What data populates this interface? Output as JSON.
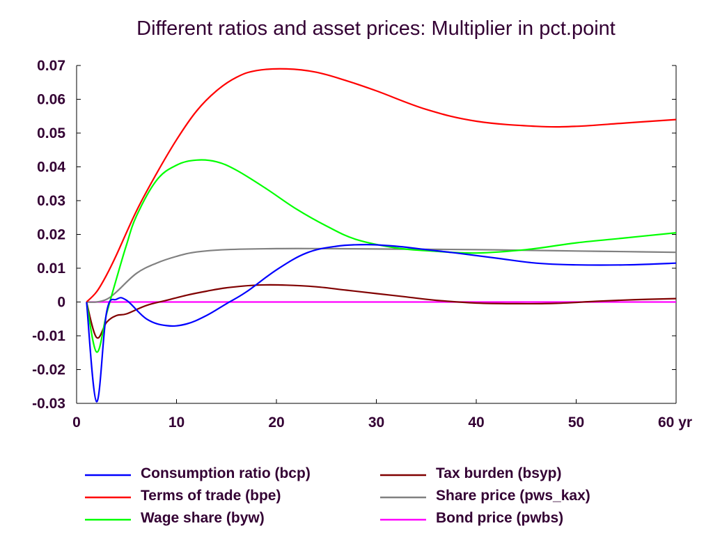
{
  "chart_data": {
    "type": "line",
    "title": "Different ratios and asset prices: Multiplier in pct.point",
    "xlabel": "",
    "ylabel": "",
    "x_unit_label": "yr",
    "xlim": [
      0,
      60
    ],
    "ylim": [
      -0.03,
      0.07
    ],
    "x_ticks": [
      0,
      10,
      20,
      30,
      40,
      50,
      60
    ],
    "x_tick_labels": [
      "0",
      "10",
      "20",
      "30",
      "40",
      "50",
      "60 yr"
    ],
    "y_ticks": [
      -0.03,
      -0.02,
      -0.01,
      0,
      0.01,
      0.02,
      0.03,
      0.04,
      0.05,
      0.06,
      0.07
    ],
    "y_tick_labels": [
      "-0.03",
      "-0.02",
      "-0.01",
      "0",
      "0.01",
      "0.02",
      "0.03",
      "0.04",
      "0.05",
      "0.06",
      "0.07"
    ],
    "grid": false,
    "legend_position": "bottom",
    "series": [
      {
        "name": "Consumption ratio (bcp)",
        "color": "#0000ff",
        "x": [
          1,
          2,
          3,
          4,
          5,
          7,
          9,
          11,
          13,
          15,
          17,
          20,
          23,
          26,
          29,
          32,
          35,
          38,
          42,
          46,
          50,
          55,
          60
        ],
        "y": [
          0,
          -0.0295,
          -0.003,
          0.0008,
          0.0005,
          -0.005,
          -0.007,
          -0.0065,
          -0.004,
          -0.0005,
          0.003,
          0.0095,
          0.0145,
          0.0165,
          0.017,
          0.0165,
          0.0155,
          0.0145,
          0.013,
          0.0115,
          0.011,
          0.011,
          0.0115
        ]
      },
      {
        "name": "Terms of trade (bpe)",
        "color": "#ff0000",
        "x": [
          1,
          2,
          3,
          4,
          6,
          8,
          10,
          12,
          14,
          16,
          18,
          21,
          24,
          27,
          30,
          35,
          40,
          46,
          50,
          55,
          60
        ],
        "y": [
          0,
          0.003,
          0.008,
          0.014,
          0.027,
          0.038,
          0.048,
          0.0565,
          0.0625,
          0.0665,
          0.0685,
          0.069,
          0.068,
          0.0655,
          0.0625,
          0.057,
          0.0535,
          0.052,
          0.052,
          0.053,
          0.054
        ]
      },
      {
        "name": "Wage share (byw)",
        "color": "#00ff00",
        "x": [
          1,
          2,
          3,
          4,
          5,
          6,
          8,
          10,
          12,
          14,
          16,
          19,
          22,
          25,
          28,
          32,
          36,
          40,
          45,
          50,
          55,
          60
        ],
        "y": [
          0,
          -0.0148,
          -0.0035,
          0.007,
          0.017,
          0.0255,
          0.036,
          0.0405,
          0.042,
          0.0415,
          0.039,
          0.0335,
          0.0275,
          0.0225,
          0.0185,
          0.016,
          0.015,
          0.0145,
          0.0155,
          0.0175,
          0.019,
          0.0205
        ]
      },
      {
        "name": "Tax burden (bsyp)",
        "color": "#800000",
        "x": [
          1,
          2,
          3,
          4,
          5,
          7,
          9,
          11,
          13,
          15,
          18,
          21,
          24,
          27,
          30,
          33,
          36,
          40,
          44,
          48,
          52,
          56,
          60
        ],
        "y": [
          0,
          -0.0105,
          -0.006,
          -0.004,
          -0.0035,
          -0.001,
          0.0005,
          0.002,
          0.0032,
          0.0042,
          0.005,
          0.005,
          0.0045,
          0.0035,
          0.0025,
          0.0015,
          0.0005,
          -0.0003,
          -0.0005,
          -0.0004,
          0.0002,
          0.0007,
          0.001
        ]
      },
      {
        "name": "Share price (pws_kax)",
        "color": "#808080",
        "x": [
          1,
          2,
          3,
          4,
          6,
          8,
          10,
          12,
          15,
          20,
          25,
          30,
          35,
          40,
          45,
          50,
          55,
          60
        ],
        "y": [
          0,
          0,
          0.0008,
          0.003,
          0.0085,
          0.0115,
          0.0135,
          0.0148,
          0.0155,
          0.0158,
          0.0158,
          0.0157,
          0.0156,
          0.0155,
          0.0153,
          0.0151,
          0.0149,
          0.0147
        ]
      },
      {
        "name": "Bond price (pwbs)",
        "color": "#ff00ff",
        "x": [
          1,
          60
        ],
        "y": [
          0,
          0
        ]
      }
    ]
  }
}
